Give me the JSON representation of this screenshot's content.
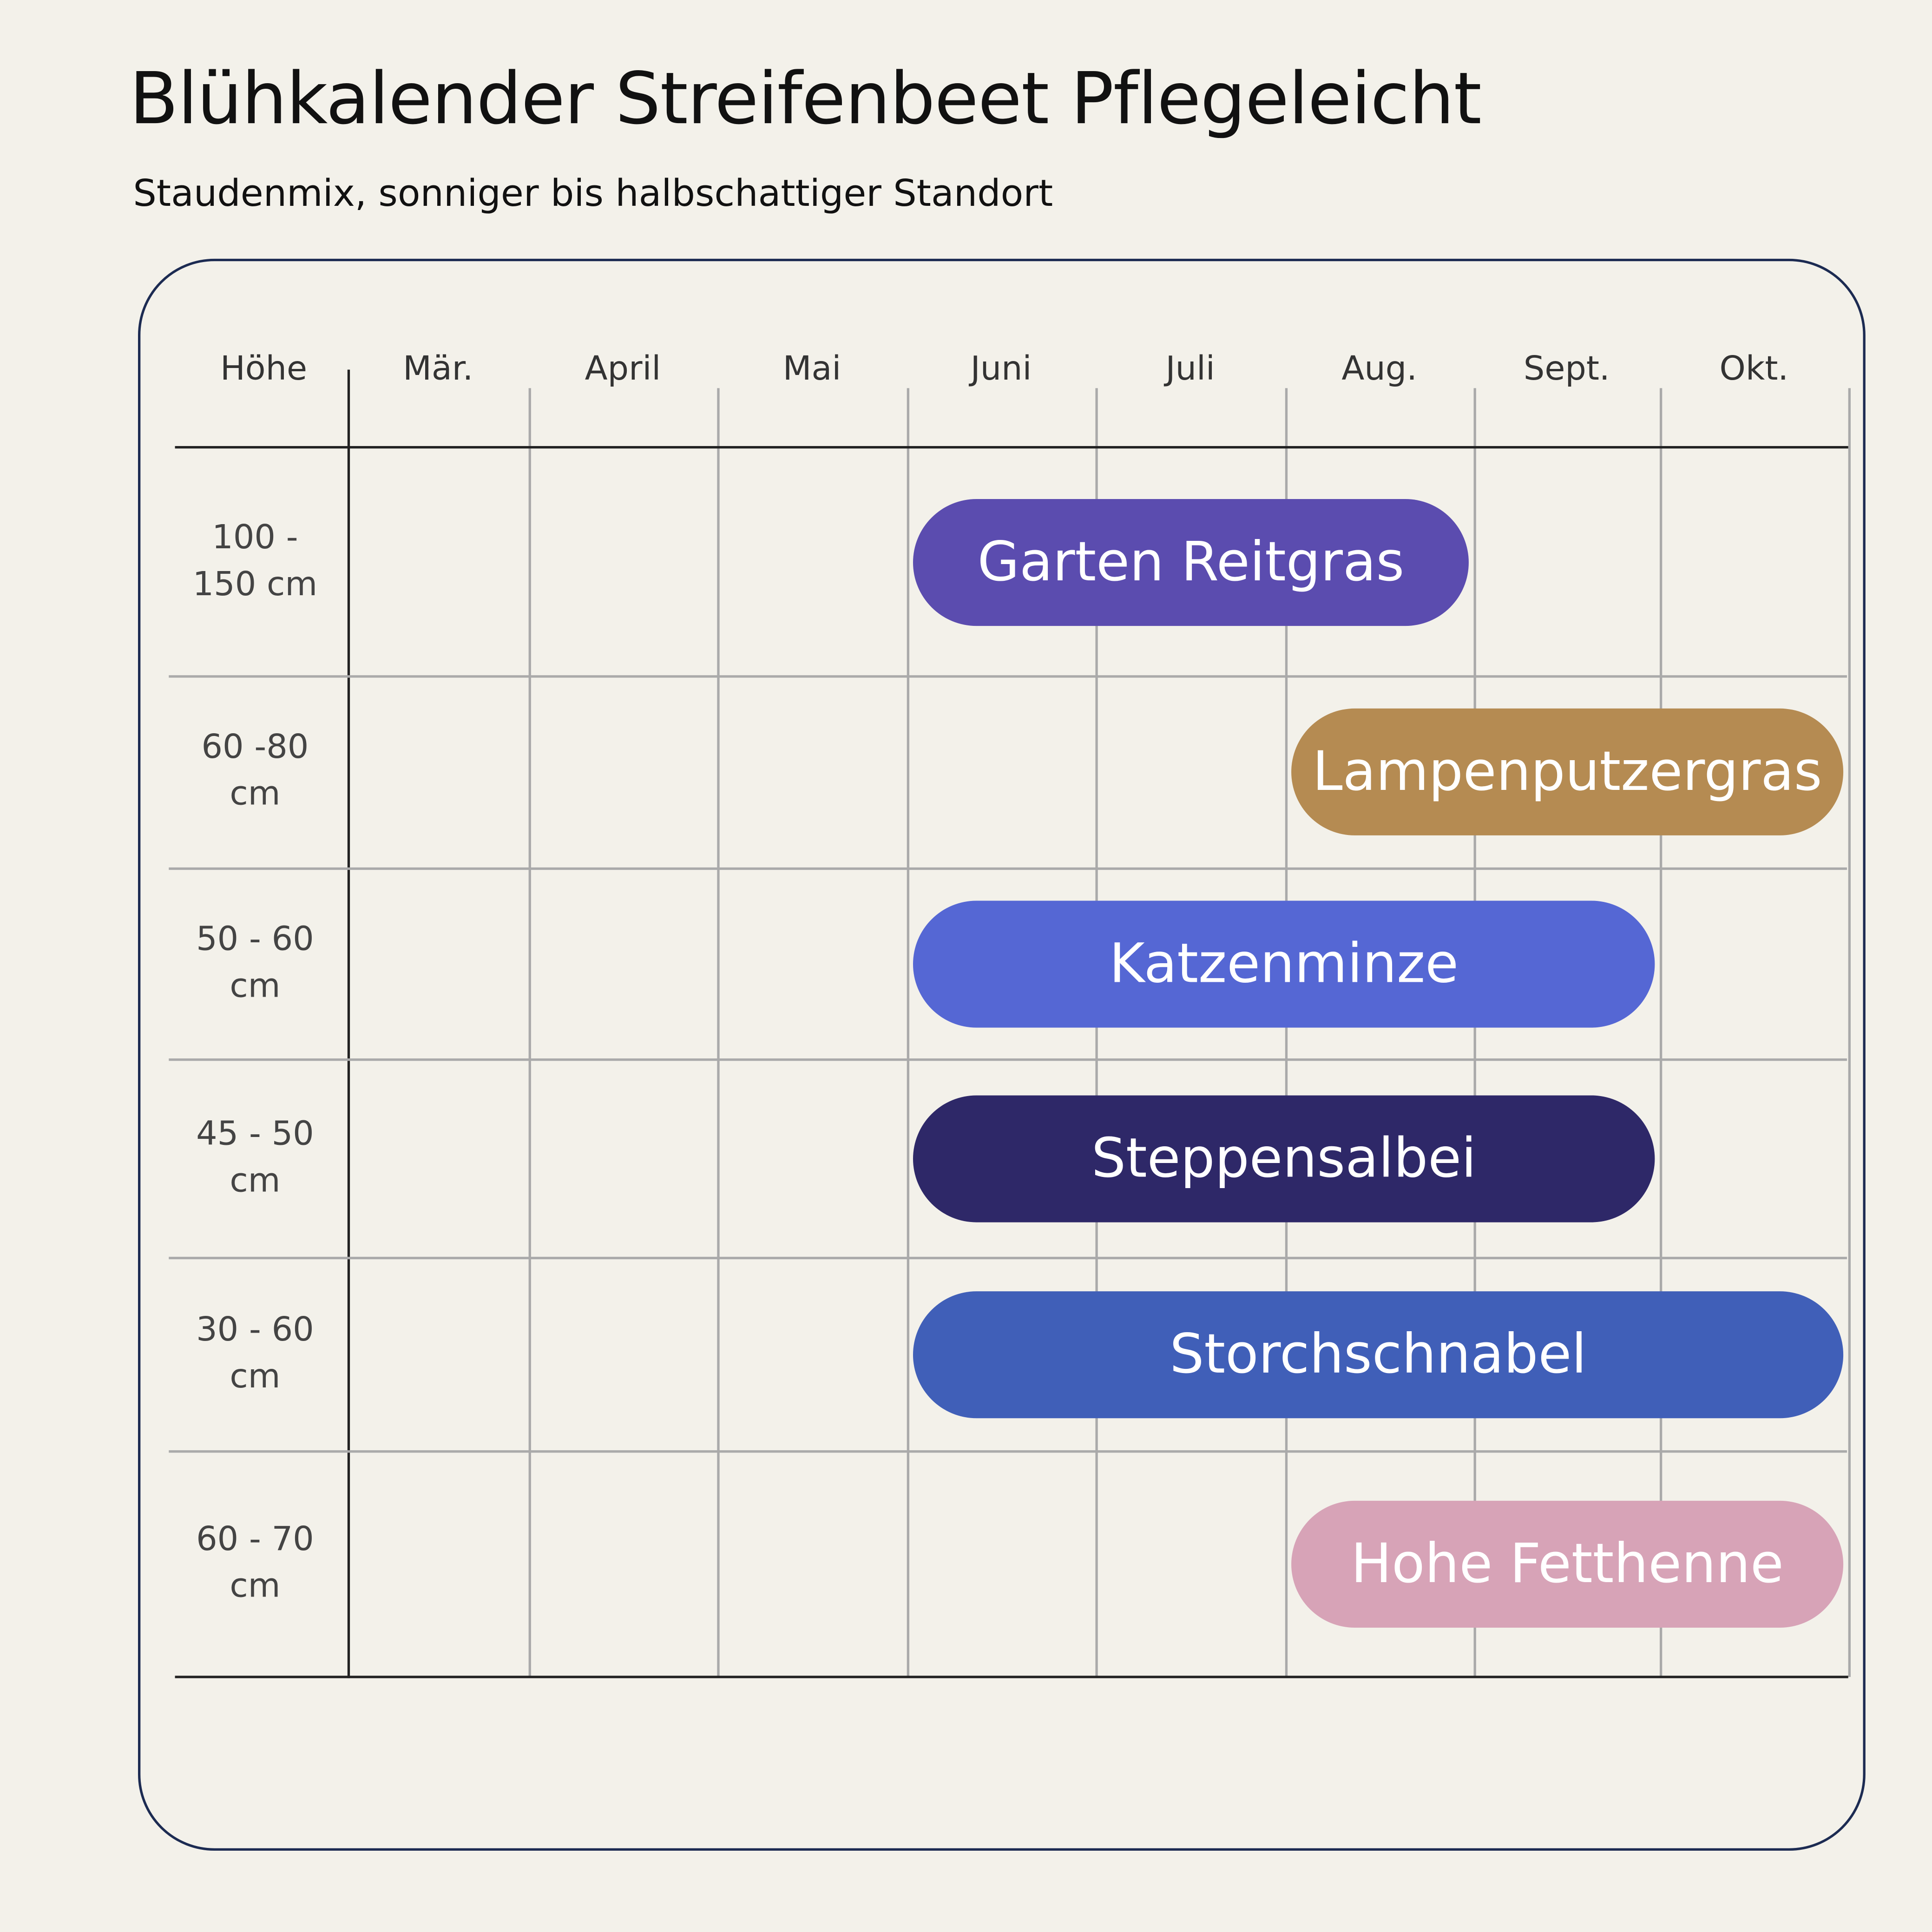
{
  "title": "Blühkalender Streifenbeet Pflegeleicht",
  "subtitle": "Staudenmix, sonniger bis halbschattiger Standort",
  "chart_data": {
    "type": "gantt",
    "height_header": "Höhe",
    "months": [
      "Mär.",
      "April",
      "Mai",
      "Juni",
      "Juli",
      "Aug.",
      "Sept.",
      "Okt."
    ],
    "rows": [
      {
        "height": "100 -\n150 cm",
        "plant": "Garten Reitgras",
        "start": "Juni",
        "end": "Aug.",
        "color": "#5b4caf"
      },
      {
        "height": "60 -80\ncm",
        "plant": "Lampenputzergras",
        "start": "Aug.",
        "end": "Okt.",
        "color": "#b58b52"
      },
      {
        "height": "50 - 60\ncm",
        "plant": "Katzenminze",
        "start": "Juni",
        "end": "Sept.",
        "color": "#5567d4"
      },
      {
        "height": "45 - 50\ncm",
        "plant": "Steppensalbei",
        "start": "Juni",
        "end": "Sept.",
        "color": "#2e2868"
      },
      {
        "height": "30 - 60\ncm",
        "plant": "Storchschnabel",
        "start": "Juni",
        "end": "Okt.",
        "color": "#405fb8"
      },
      {
        "height": "60 - 70\ncm",
        "plant": "Hohe Fetthenne",
        "start": "Aug.",
        "end": "Okt.",
        "color": "#d7a3b7"
      }
    ]
  }
}
